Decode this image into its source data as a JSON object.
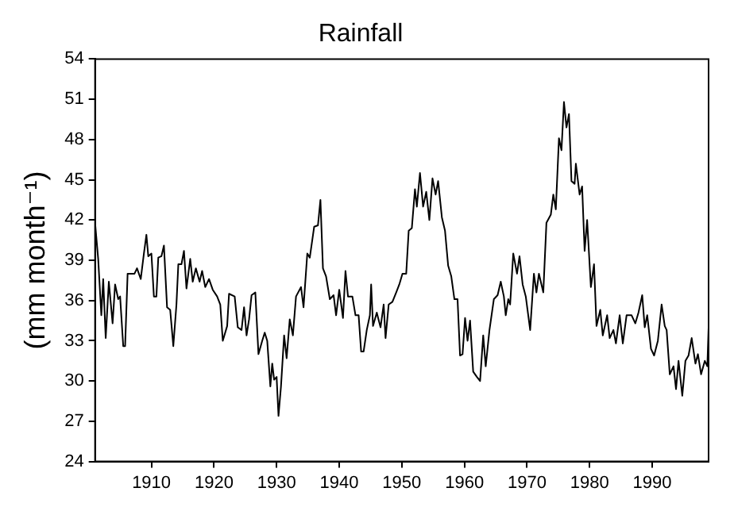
{
  "chart_data": {
    "type": "line",
    "title": "Rainfall",
    "ylabel": "(mm month⁻¹)",
    "xlim": [
      1901,
      1999
    ],
    "xticks": [
      1910,
      1920,
      1930,
      1940,
      1950,
      1960,
      1970,
      1980,
      1990
    ],
    "ylim": [
      24,
      54
    ],
    "yticks": [
      24,
      27,
      30,
      33,
      36,
      39,
      42,
      45,
      48,
      51,
      54
    ],
    "grid": false,
    "legend": false,
    "marker": "none",
    "line_style": "solid",
    "series": [
      {
        "color": "#000000",
        "x": [
          1901,
          1901.5,
          1902,
          1902.3,
          1902.7,
          1903.2,
          1903.8,
          1904.2,
          1904.7,
          1905,
          1905.5,
          1905.8,
          1906.2,
          1907.3,
          1907.7,
          1908.3,
          1908.8,
          1909.2,
          1909.5,
          1910,
          1910.4,
          1910.8,
          1911.1,
          1911.6,
          1912,
          1912.5,
          1913,
          1913.5,
          1914,
          1914.3,
          1914.8,
          1915.2,
          1915.6,
          1916.2,
          1916.6,
          1917.1,
          1917.7,
          1918.1,
          1918.6,
          1919.2,
          1919.8,
          1920.5,
          1921,
          1921.4,
          1922.1,
          1922.4,
          1923.3,
          1923.8,
          1924.4,
          1924.8,
          1925.2,
          1925.6,
          1926,
          1926.6,
          1927.1,
          1927.7,
          1928.1,
          1928.5,
          1929,
          1929.3,
          1929.6,
          1930,
          1930.3,
          1930.7,
          1931.2,
          1931.6,
          1932.1,
          1932.6,
          1933.1,
          1933.9,
          1934.3,
          1934.9,
          1935.3,
          1936,
          1936.6,
          1937,
          1937.4,
          1937.9,
          1938.5,
          1939.1,
          1939.5,
          1940,
          1940.6,
          1941,
          1941.4,
          1942.1,
          1942.6,
          1943.1,
          1943.5,
          1943.9,
          1944.4,
          1944.9,
          1945.1,
          1945.4,
          1946,
          1946.6,
          1947.1,
          1947.4,
          1947.9,
          1948.5,
          1949.1,
          1949.6,
          1950.1,
          1950.7,
          1951.1,
          1951.6,
          1952.1,
          1952.4,
          1952.9,
          1953.4,
          1953.9,
          1954.4,
          1954.9,
          1955.4,
          1955.8,
          1956.4,
          1956.9,
          1957.4,
          1957.9,
          1958.4,
          1958.9,
          1959.3,
          1959.7,
          1960.1,
          1960.5,
          1960.9,
          1961.4,
          1962,
          1962.5,
          1963,
          1963.4,
          1964,
          1964.7,
          1965.3,
          1965.8,
          1966.3,
          1966.6,
          1967,
          1967.3,
          1967.8,
          1968.4,
          1968.8,
          1969.3,
          1969.8,
          1970.5,
          1971.1,
          1971.5,
          1971.9,
          1972.6,
          1973.1,
          1973.8,
          1974.2,
          1974.6,
          1975.1,
          1975.5,
          1975.9,
          1976.3,
          1976.7,
          1977.1,
          1977.6,
          1977.8,
          1978.4,
          1978.8,
          1979.2,
          1979.6,
          1980.2,
          1980.7,
          1981.1,
          1981.7,
          1982.1,
          1982.8,
          1983.2,
          1983.8,
          1984.2,
          1984.8,
          1985.3,
          1985.9,
          1986.7,
          1987.3,
          1987.8,
          1988.4,
          1988.8,
          1989.2,
          1989.8,
          1990.3,
          1990.9,
          1991.5,
          1992,
          1992.3,
          1992.8,
          1993.4,
          1993.8,
          1994.2,
          1994.8,
          1995.3,
          1995.8,
          1996.3,
          1996.9,
          1997.3,
          1997.8,
          1998.4,
          1998.8,
          1999
        ],
        "values": [
          41.8,
          39.1,
          34.9,
          37.6,
          33.2,
          37.4,
          34.3,
          37.2,
          36.1,
          36.3,
          32.6,
          32.6,
          38.0,
          38.0,
          38.4,
          37.6,
          39.5,
          40.9,
          39.3,
          39.5,
          36.3,
          36.3,
          39.2,
          39.3,
          40.1,
          35.5,
          35.3,
          32.6,
          35.7,
          38.7,
          38.7,
          39.7,
          36.9,
          39.1,
          37.4,
          38.4,
          37.4,
          38.2,
          37.0,
          37.6,
          36.8,
          36.3,
          35.7,
          33.0,
          34.1,
          36.5,
          36.3,
          34.0,
          33.8,
          35.5,
          33.4,
          34.6,
          36.4,
          36.6,
          32.0,
          33.0,
          33.6,
          33.0,
          29.6,
          31.3,
          30.1,
          30.3,
          27.4,
          29.6,
          33.4,
          31.7,
          34.6,
          33.4,
          36.3,
          37.0,
          35.5,
          39.5,
          39.2,
          41.5,
          41.6,
          43.5,
          38.4,
          37.8,
          36.1,
          36.4,
          34.9,
          36.8,
          34.7,
          38.2,
          36.3,
          36.3,
          34.9,
          34.9,
          32.2,
          32.2,
          33.8,
          34.9,
          37.2,
          34.1,
          35.1,
          34.0,
          35.7,
          33.2,
          35.7,
          35.9,
          36.6,
          37.2,
          38.0,
          38.0,
          41.2,
          41.4,
          44.3,
          43.0,
          45.5,
          43.0,
          44.1,
          42.0,
          45.1,
          43.9,
          44.9,
          42.2,
          41.2,
          38.6,
          37.8,
          36.1,
          36.1,
          31.9,
          32.0,
          34.7,
          33.0,
          34.5,
          30.7,
          30.3,
          30.0,
          33.4,
          31.1,
          33.8,
          36.1,
          36.4,
          37.4,
          36.3,
          34.9,
          36.1,
          35.7,
          39.5,
          38.0,
          39.3,
          37.2,
          36.3,
          33.8,
          38.0,
          36.6,
          38.0,
          36.6,
          41.8,
          42.4,
          43.9,
          42.8,
          48.1,
          47.2,
          50.8,
          48.9,
          49.9,
          44.9,
          44.7,
          46.2,
          43.9,
          44.5,
          39.7,
          42.0,
          37.0,
          38.7,
          34.1,
          35.3,
          33.4,
          34.9,
          33.2,
          33.8,
          32.8,
          34.9,
          32.8,
          34.9,
          34.9,
          34.3,
          35.1,
          36.4,
          34.0,
          34.9,
          32.4,
          31.9,
          33.0,
          35.7,
          34.1,
          33.8,
          30.5,
          31.1,
          29.4,
          31.5,
          28.9,
          31.5,
          31.9,
          33.2,
          31.3,
          32.0,
          30.5,
          31.5,
          31.1,
          34.0
        ]
      }
    ]
  }
}
